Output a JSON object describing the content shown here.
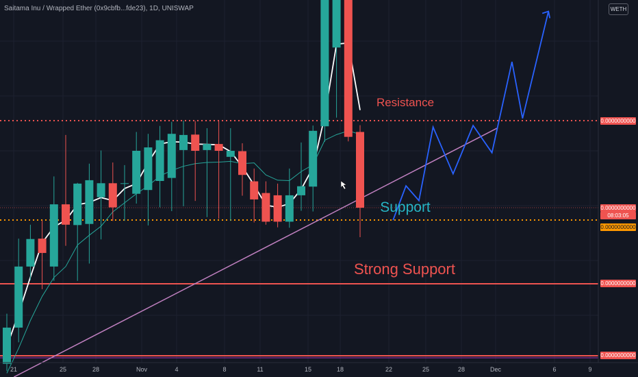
{
  "header": {
    "title": "Saitama Inu / Wrapped Ether (0x9cbfb...fde23), 1D, UNISWAP",
    "quote_badge": "WETH"
  },
  "annotations": {
    "resistance": "Resistance",
    "support": "Support",
    "strong_support": "Strong Support"
  },
  "price_scale": {
    "resistance_price": "0.0000000000",
    "current_price": "0.0000000000",
    "countdown": "08:03:05",
    "support_price": "0.0000000000",
    "strong_support_price": "0.0000000000",
    "bottom_price": "0.0000000000"
  },
  "colors": {
    "background": "#131722",
    "up": "#26a69a",
    "down": "#ef5350",
    "resistance": "#ef5350",
    "support_text": "#26b5c4",
    "support_line": "#ff9800",
    "trendline": "#c080c0",
    "projection": "#2962ff",
    "ma_fast": "#ffffff",
    "ma_slow": "#26a69a"
  },
  "chart_data": {
    "type": "candlestick",
    "title": "Saitama Inu / Wrapped Ether (0x9cbfb...fde23), 1D, UNISWAP",
    "x_tick_labels": [
      "21",
      "25",
      "28",
      "Nov",
      "4",
      "8",
      "11",
      "15",
      "18",
      "22",
      "25",
      "28",
      "Dec",
      "6",
      "9"
    ],
    "y_tick_labels": [
      "0.0000000000"
    ],
    "candles_note": "open/high/low/close in relative price units (0 = bottom of view, 100 = top of view); y-axis labels are not legible",
    "candles": [
      {
        "dir": "up",
        "open": 3.5,
        "close": 13.1,
        "high": 16.8,
        "low": 1.6
      },
      {
        "dir": "up",
        "open": 13.1,
        "close": 29.3,
        "high": 36.7,
        "low": 9.2
      },
      {
        "dir": "up",
        "open": 29.3,
        "close": 36.6,
        "high": 40.4,
        "low": 25.7
      },
      {
        "dir": "down",
        "open": 36.7,
        "close": 32.9,
        "high": 41.5,
        "low": 23.3
      },
      {
        "dir": "up",
        "open": 29.3,
        "close": 45.8,
        "high": 53.2,
        "low": 25.5
      },
      {
        "dir": "down",
        "open": 45.8,
        "close": 40.4,
        "high": 64.2,
        "low": 34.8
      },
      {
        "dir": "up",
        "open": 40.3,
        "close": 51.3,
        "high": 51.5,
        "low": 25.5
      },
      {
        "dir": "up",
        "open": 40.6,
        "close": 52.2,
        "high": 56.6,
        "low": 30.1
      },
      {
        "dir": "up",
        "open": 47.7,
        "close": 51.4,
        "high": 60.1,
        "low": 36.5
      },
      {
        "dir": "down",
        "open": 51.4,
        "close": 45.0,
        "high": 56.9,
        "low": 41.4
      },
      {
        "dir": "up",
        "open": 51.4,
        "close": 51.4,
        "high": 56.2,
        "low": 41.4
      },
      {
        "dir": "up",
        "open": 48.6,
        "close": 60.0,
        "high": 65.0,
        "low": 46.0
      },
      {
        "dir": "up",
        "open": 49.6,
        "close": 60.9,
        "high": 64.5,
        "low": 40.2
      },
      {
        "dir": "up",
        "open": 52.0,
        "close": 62.8,
        "high": 66.6,
        "low": 45.0
      },
      {
        "dir": "up",
        "open": 52.8,
        "close": 64.5,
        "high": 67.7,
        "low": 44.0
      },
      {
        "dir": "up",
        "open": 60.2,
        "close": 64.2,
        "high": 68.0,
        "low": 45.3
      },
      {
        "dir": "down",
        "open": 64.3,
        "close": 60.0,
        "high": 67.9,
        "low": 46.7
      },
      {
        "dir": "up",
        "open": 60.2,
        "close": 61.8,
        "high": 66.0,
        "low": 42.4
      },
      {
        "dir": "down",
        "open": 61.8,
        "close": 60.0,
        "high": 67.9,
        "low": 42.0
      },
      {
        "dir": "up",
        "open": 58.4,
        "close": 60.0,
        "high": 66.0,
        "low": 41.4
      },
      {
        "dir": "down",
        "open": 59.9,
        "close": 53.6,
        "high": 62.0,
        "low": 48.1
      },
      {
        "dir": "down",
        "open": 51.9,
        "close": 47.1,
        "high": 55.3,
        "low": 41.0
      },
      {
        "dir": "down",
        "open": 48.8,
        "close": 41.2,
        "high": 51.9,
        "low": 40.4
      },
      {
        "dir": "down",
        "open": 48.2,
        "close": 41.2,
        "high": 51.3,
        "low": 39.7
      },
      {
        "dir": "up",
        "open": 41.2,
        "close": 48.2,
        "high": 55.3,
        "low": 39.6
      },
      {
        "dir": "up",
        "open": 48.2,
        "close": 50.6,
        "high": 62.2,
        "low": 44.1
      },
      {
        "dir": "up",
        "open": 50.5,
        "close": 65.3,
        "high": 66.7,
        "low": 43.9
      },
      {
        "dir": "up",
        "open": 66.5,
        "close": 100.0,
        "high": 100.0,
        "low": 62.4
      },
      {
        "dir": "up",
        "open": 87.4,
        "close": 100.0,
        "high": 100.0,
        "low": 68.8
      },
      {
        "dir": "down",
        "open": 100.0,
        "close": 63.7,
        "high": 100.0,
        "low": 62.5
      },
      {
        "dir": "down",
        "open": 65.0,
        "close": 44.9,
        "high": 66.8,
        "low": 37.1
      }
    ],
    "series": [
      {
        "name": "MA fast (white)",
        "values": [
          8.0,
          16.9,
          26.5,
          35.6,
          39.8,
          41.6,
          45.7,
          46.3,
          47.6,
          46.8,
          50.0,
          51.3,
          56.9,
          61.8,
          62.4,
          62.3,
          61.8,
          61.7,
          61.6,
          59.8,
          55.8,
          50.9,
          45.6,
          45.0,
          46.0,
          49.8,
          55.6,
          69.2,
          88.3,
          88.6,
          70.8
        ]
      },
      {
        "name": "MA slow (teal)",
        "values": [
          1.0,
          7.6,
          15.0,
          21.4,
          26.4,
          29.3,
          35.0,
          37.6,
          40.0,
          43.8,
          46.2,
          48.6,
          50.7,
          53.3,
          54.8,
          55.9,
          56.6,
          56.9,
          57.0,
          57.2,
          56.6,
          56.8,
          53.6,
          52.2,
          52.1,
          54.5,
          56.3,
          62.8,
          64.3,
          65.3,
          64.4
        ]
      }
    ],
    "levels": [
      {
        "name": "Resistance",
        "y": 67.8
      },
      {
        "name": "Support",
        "y": 41.2
      },
      {
        "name": "Strong Support",
        "y": 24.6
      },
      {
        "name": "Bottom",
        "y": 5.0
      }
    ],
    "trendline": [
      [
        0.6,
        0.0
      ],
      [
        41.7,
        66.1
      ]
    ],
    "projection": [
      [
        32.8,
        41.6
      ],
      [
        33.9,
        50.7
      ],
      [
        35.0,
        46.8
      ],
      [
        36.2,
        66.3
      ],
      [
        37.9,
        53.9
      ],
      [
        39.6,
        66.7
      ],
      [
        41.2,
        59.5
      ],
      [
        42.9,
        83.6
      ],
      [
        43.8,
        68.6
      ],
      [
        46.0,
        97.0
      ]
    ],
    "ylim": [
      0,
      100
    ],
    "grid": true
  }
}
